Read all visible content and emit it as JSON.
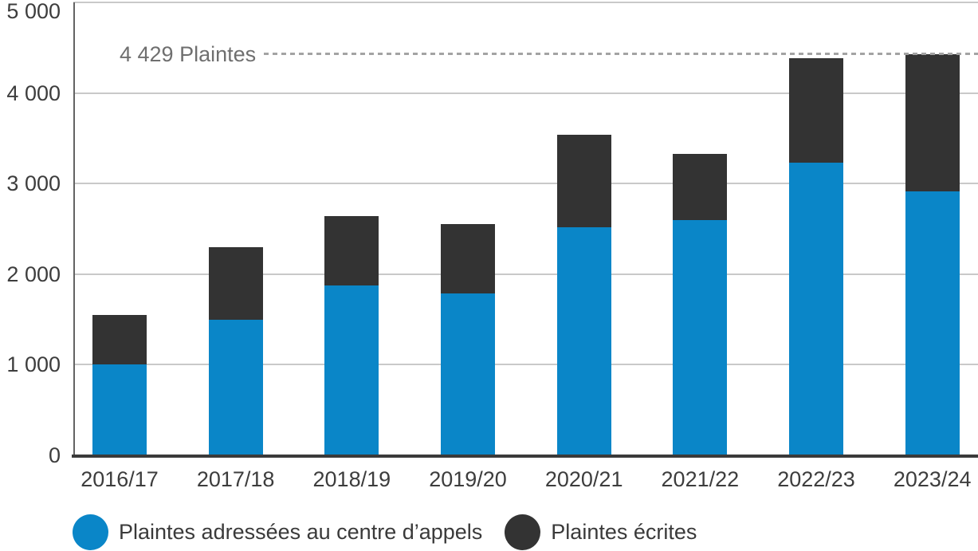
{
  "chart_data": {
    "type": "bar",
    "stacked": true,
    "title": "",
    "categories": [
      "2016/17",
      "2017/18",
      "2018/19",
      "2019/20",
      "2020/21",
      "2021/22",
      "2022/23",
      "2023/24"
    ],
    "series": [
      {
        "name": "Plaintes adressées au centre d’appels",
        "color": "#0a86c8",
        "values": [
          1000,
          1500,
          1875,
          1785,
          2520,
          2600,
          3230,
          2915
        ]
      },
      {
        "name": "Plaintes écrites",
        "color": "#333333",
        "values": [
          550,
          800,
          765,
          765,
          1015,
          725,
          1155,
          1514
        ]
      }
    ],
    "ylim": [
      0,
      5000
    ],
    "yticks": [
      {
        "value": 0,
        "label": "0"
      },
      {
        "value": 1000,
        "label": "1 000"
      },
      {
        "value": 2000,
        "label": "2 000"
      },
      {
        "value": 3000,
        "label": "3 000"
      },
      {
        "value": 4000,
        "label": "4 000"
      },
      {
        "value": 5000,
        "label": "5 000"
      }
    ],
    "grid": true,
    "legend_position": "bottom",
    "annotation": {
      "text": "4 429 Plaintes",
      "value": 4429
    }
  },
  "colors": {
    "grid": "#c9c9c9",
    "x_axis": "#3a3a3a",
    "y_axis": "#636363",
    "tick_label": "#3d3d3d",
    "annotation_text": "#6f6f6f",
    "annotation_dash": "#a3a3a3"
  }
}
